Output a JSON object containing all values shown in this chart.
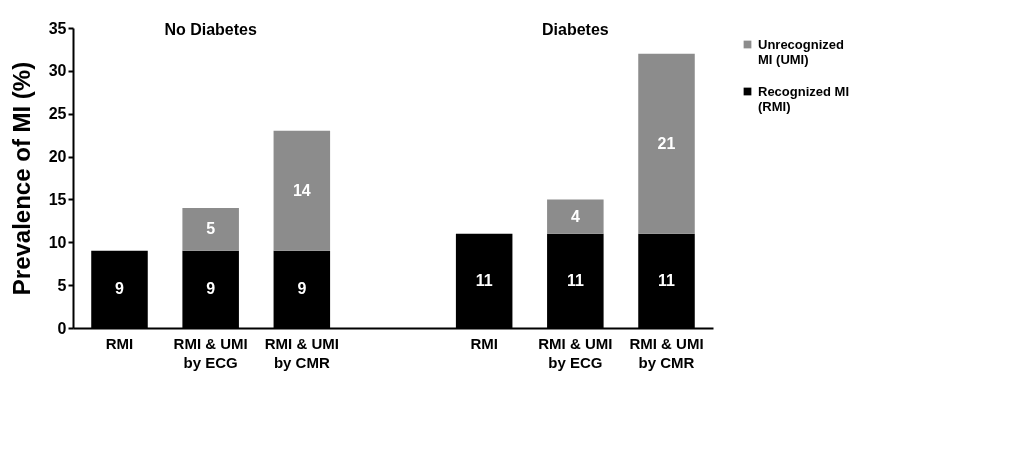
{
  "chart_data": {
    "type": "bar",
    "stacked": true,
    "ylabel": "Prevalence of MI (%)",
    "categories": [
      "RMI",
      "RMI & UMI by ECG",
      "RMI & UMI by CMR",
      null,
      "RMI",
      "RMI & UMI by ECG",
      "RMI & UMI by CMR"
    ],
    "series": [
      {
        "name": "Recognized MI (RMI)",
        "color": "#000000",
        "values": [
          9,
          9,
          9,
          null,
          11,
          11,
          11
        ]
      },
      {
        "name": "Unrecognized MI (UMI)",
        "color": "#8c8c8c",
        "values": [
          null,
          5,
          14,
          null,
          null,
          4,
          21
        ]
      }
    ],
    "ylim": [
      0,
      35
    ],
    "yticks": [
      0,
      5,
      10,
      15,
      20,
      25,
      30,
      35
    ],
    "data_labels": true,
    "legend": "right",
    "grid": false,
    "annotations": [
      "No Diabetes",
      "Diabetes"
    ]
  }
}
